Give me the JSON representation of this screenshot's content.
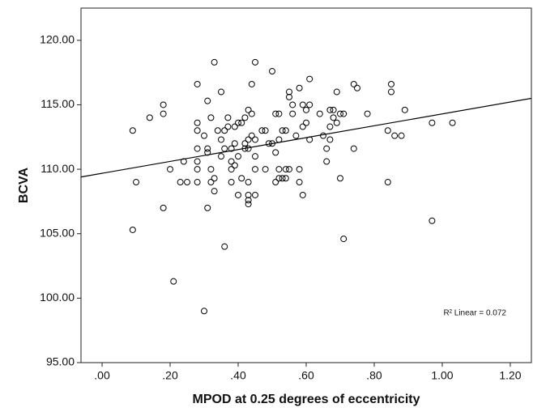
{
  "chart_data": {
    "type": "scatter",
    "x_label": "MPOD at 0.25 degrees of eccentricity",
    "y_label": "BCVA",
    "annotation": "R² Linear = 0.072",
    "xlim": [
      -0.062,
      1.262
    ],
    "ylim": [
      95,
      122.5
    ],
    "xticks": [
      {
        "value": 0,
        "label": ".00"
      },
      {
        "value": 0.2,
        "label": ".20"
      },
      {
        "value": 0.4,
        "label": ".40"
      },
      {
        "value": 0.6,
        "label": ".60"
      },
      {
        "value": 0.8,
        "label": ".80"
      },
      {
        "value": 1.0,
        "label": "1.00"
      },
      {
        "value": 1.2,
        "label": "1.20"
      }
    ],
    "yticks": [
      {
        "value": 95,
        "label": "95.00"
      },
      {
        "value": 100,
        "label": "100.00"
      },
      {
        "value": 105,
        "label": "105.00"
      },
      {
        "value": 110,
        "label": "110.00"
      },
      {
        "value": 115,
        "label": "115.00"
      },
      {
        "value": 120,
        "label": "120.00"
      }
    ],
    "grid": false,
    "color": "#000000",
    "x": [
      0.09,
      0.1,
      0.09,
      0.14,
      0.18,
      0.18,
      0.18,
      0.2,
      0.21,
      0.23,
      0.24,
      0.25,
      0.28,
      0.28,
      0.28,
      0.28,
      0.28,
      0.28,
      0.28,
      0.3,
      0.3,
      0.31,
      0.31,
      0.31,
      0.31,
      0.32,
      0.32,
      0.32,
      0.33,
      0.33,
      0.33,
      0.34,
      0.35,
      0.35,
      0.35,
      0.36,
      0.36,
      0.36,
      0.37,
      0.37,
      0.38,
      0.38,
      0.38,
      0.38,
      0.39,
      0.39,
      0.39,
      0.4,
      0.4,
      0.4,
      0.41,
      0.41,
      0.42,
      0.42,
      0.42,
      0.43,
      0.43,
      0.43,
      0.43,
      0.43,
      0.43,
      0.43,
      0.44,
      0.44,
      0.44,
      0.45,
      0.45,
      0.45,
      0.45,
      0.45,
      0.47,
      0.48,
      0.48,
      0.49,
      0.5,
      0.5,
      0.51,
      0.51,
      0.51,
      0.52,
      0.52,
      0.52,
      0.52,
      0.53,
      0.53,
      0.54,
      0.54,
      0.54,
      0.55,
      0.55,
      0.55,
      0.56,
      0.56,
      0.57,
      0.58,
      0.58,
      0.58,
      0.59,
      0.59,
      0.59,
      0.6,
      0.6,
      0.61,
      0.61,
      0.61,
      0.64,
      0.65,
      0.66,
      0.66,
      0.67,
      0.67,
      0.67,
      0.68,
      0.68,
      0.69,
      0.69,
      0.7,
      0.7,
      0.71,
      0.71,
      0.74,
      0.74,
      0.75,
      0.78,
      0.84,
      0.84,
      0.85,
      0.85,
      0.86,
      0.88,
      0.89,
      0.97,
      0.97,
      1.03
    ],
    "values": [
      113.0,
      109.0,
      105.3,
      114.0,
      115.0,
      114.3,
      107.0,
      110.0,
      101.3,
      109.0,
      110.6,
      109.0,
      116.6,
      113.6,
      113.0,
      111.6,
      110.6,
      110.0,
      109.0,
      112.6,
      99.0,
      115.3,
      111.6,
      111.3,
      107.0,
      114.0,
      110.0,
      109.0,
      118.3,
      109.3,
      108.3,
      113.0,
      116.0,
      112.3,
      111.0,
      113.0,
      111.6,
      104.0,
      114.0,
      113.3,
      111.6,
      110.6,
      110.0,
      109.0,
      113.3,
      112.0,
      110.3,
      113.6,
      111.0,
      108.0,
      113.6,
      109.3,
      114.0,
      112.0,
      111.6,
      114.6,
      112.3,
      111.6,
      109.0,
      108.0,
      107.6,
      107.3,
      116.6,
      114.3,
      112.6,
      118.3,
      112.3,
      111.0,
      110.0,
      108.0,
      113.0,
      113.0,
      110.0,
      112.0,
      117.6,
      112.0,
      114.3,
      111.3,
      109.0,
      114.3,
      112.3,
      110.0,
      109.3,
      113.0,
      109.3,
      113.0,
      110.0,
      109.3,
      116.0,
      115.6,
      110.0,
      115.0,
      114.3,
      112.6,
      116.3,
      110.0,
      109.0,
      115.0,
      113.3,
      108.0,
      114.6,
      113.6,
      117.0,
      115.0,
      112.3,
      114.3,
      112.6,
      111.6,
      110.6,
      114.6,
      113.3,
      112.3,
      114.6,
      114.0,
      116.0,
      113.6,
      114.3,
      109.3,
      114.3,
      104.6,
      116.6,
      111.6,
      116.3,
      114.3,
      113.0,
      109.0,
      116.6,
      116.0,
      112.6,
      112.6,
      114.6,
      113.6,
      106.0,
      113.6
    ],
    "fit_line": {
      "x": [
        -0.062,
        1.262
      ],
      "y": [
        109.4,
        115.5
      ]
    }
  }
}
